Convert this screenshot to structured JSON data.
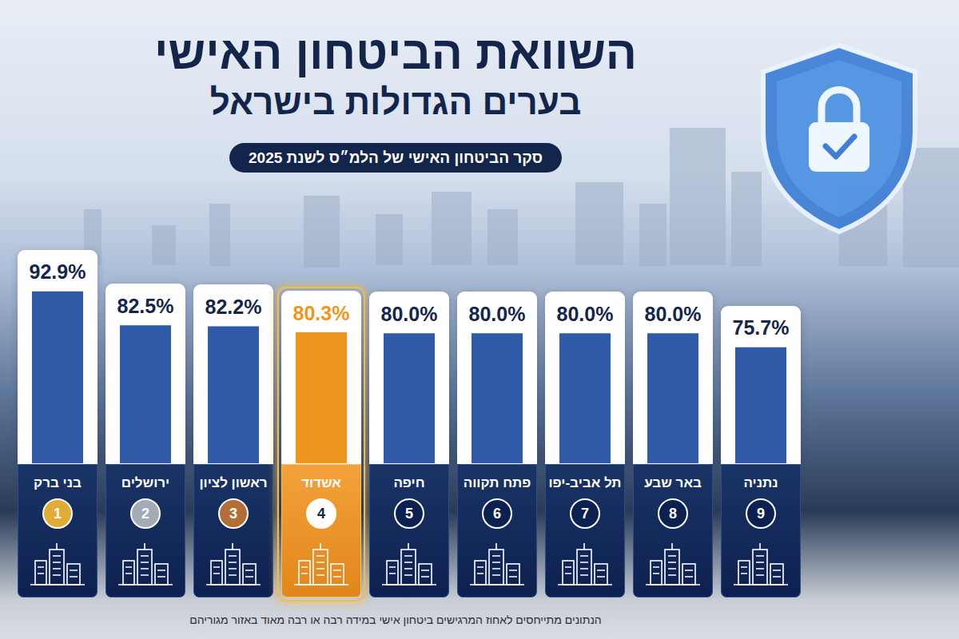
{
  "chart_data": {
    "type": "bar",
    "title": "השוואת הביטחון האישי בערים הגדולות בישראל",
    "subtitle": "סקר הביטחון האישי של הלמ״ס לשנת 2025",
    "annotations": [
      "הנתונים מתייחסים לאחוז המרגישים ביטחון אישי במידה רבה או רבה מאוד באזור מגוריהם"
    ],
    "categories": [
      "בני ברק",
      "ירושלים",
      "ראשון לציון",
      "אשדוד",
      "חיפה",
      "פתח תקווה",
      "תל אביב-יפו",
      "באר שבע",
      "נתניה"
    ],
    "ranks": [
      1,
      2,
      3,
      4,
      5,
      6,
      7,
      8,
      9
    ],
    "values": [
      92.9,
      82.5,
      82.2,
      80.3,
      80.0,
      80.0,
      80.0,
      80.0,
      75.7
    ],
    "value_labels": [
      "92.9%",
      "82.5%",
      "82.2%",
      "80.3%",
      "80.0%",
      "80.0%",
      "80.0%",
      "80.0%",
      "75.7%"
    ],
    "colors": [
      "#2f5aa8",
      "#2f5aa8",
      "#2f5aa8",
      "#f0961f",
      "#2f5aa8",
      "#2f5aa8",
      "#2f5aa8",
      "#2f5aa8",
      "#2f5aa8"
    ],
    "ylim": [
      40,
      100
    ],
    "data_labels": true,
    "tick_labels": "x",
    "grid": false
  }
}
